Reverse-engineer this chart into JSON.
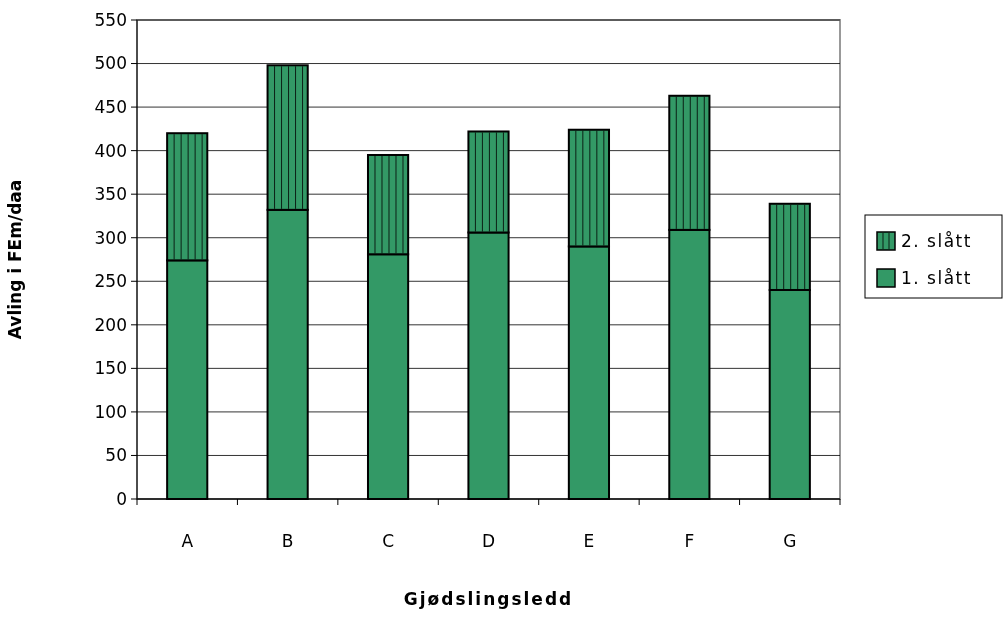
{
  "chart_data": {
    "type": "bar",
    "stacked": true,
    "categories": [
      "A",
      "B",
      "C",
      "D",
      "E",
      "F",
      "G"
    ],
    "series": [
      {
        "name": "1. slått",
        "color": "#339966",
        "values": [
          274,
          332,
          281,
          306,
          290,
          309,
          240
        ]
      },
      {
        "name": "2. slått",
        "color": "#339966",
        "values": [
          146,
          166,
          114,
          116,
          134,
          154,
          99
        ]
      }
    ],
    "ylim": [
      0,
      550
    ],
    "yticks": [
      0,
      50,
      100,
      150,
      200,
      250,
      300,
      350,
      400,
      450,
      500,
      550
    ],
    "xlabel": "Gjødslingsledd",
    "ylabel": "Avling i FEm/daa",
    "grid": "y",
    "legend": "right"
  }
}
